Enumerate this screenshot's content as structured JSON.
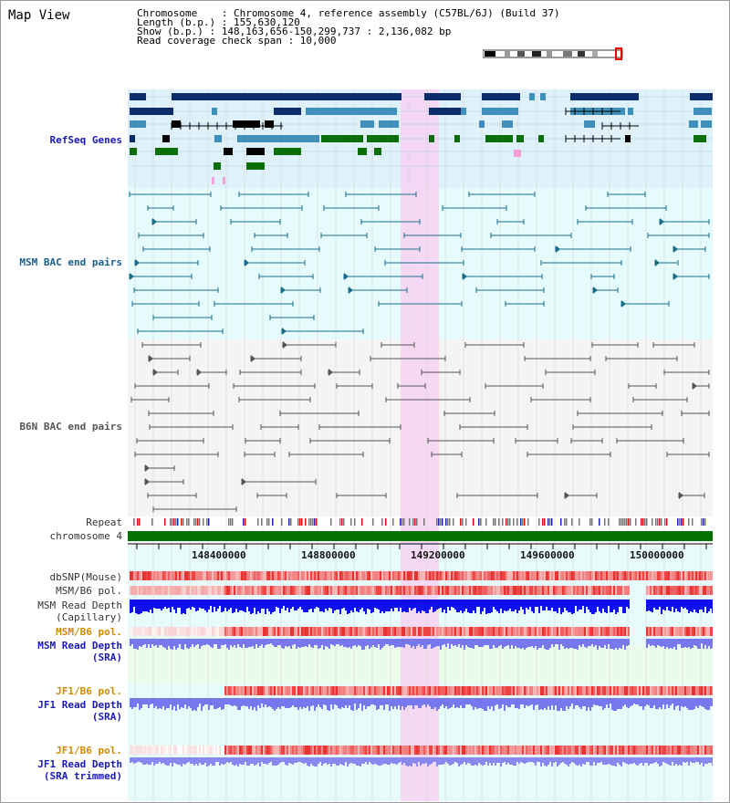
{
  "title": "Map View",
  "info": {
    "chromosome": "Chromosome    : Chromosome 4, reference assembly (C57BL/6J) (Build 37)",
    "length": "Length (b.p.) : 155,630,120",
    "show": "Show (b.p.) : 148,163,656-150,299,737 : 2,136,082 bp",
    "span": "Read coverage check span : 10,000"
  },
  "tracks": {
    "refseq": "RefSeq Genes",
    "msm_bac": "MSM BAC end pairs",
    "b6n_bac": "B6N BAC end pairs",
    "repeat": "Repeat",
    "chromosome": "chromosome 4",
    "dbsnp": "dbSNP(Mouse)",
    "msm_b6_pol_1": "MSM/B6 pol.",
    "msm_read_depth_cap_1": "MSM Read Depth",
    "msm_read_depth_cap_2": "(Capillary)",
    "msm_b6_pol_2": "MSM/B6 pol.",
    "msm_read_depth_sra_1": "MSM Read Depth",
    "msm_read_depth_sra_2": "(SRA)",
    "jf1_b6_pol_1": "JF1/B6 pol.",
    "jf1_read_depth_sra_1": "JF1 Read Depth",
    "jf1_read_depth_sra_2": "(SRA)",
    "jf1_b6_pol_2": "JF1/B6 pol.",
    "jf1_read_depth_trim_1": "JF1 Read Depth",
    "jf1_read_depth_trim_2": "(SRA trimmed)"
  },
  "axis": {
    "ticks": [
      "148400000",
      "148800000",
      "149200000",
      "149600000",
      "150000000"
    ]
  },
  "colors": {
    "refseq_bg": "#dff2fb",
    "msm_bg": "#e6fbfb",
    "b6n_bg": "#f4f4f4",
    "highlight": "#f7d2f2",
    "chromosome_bar": "#067206",
    "navy": "#0c2c6a",
    "steel": "#3f8fba",
    "green": "#0b6e0b",
    "teal_line": "#1a6e8c",
    "gray_line": "#555555",
    "snp_red": "#ee4444",
    "depth_blue": "#1010ee",
    "depth_lightblue": "#7777ee"
  }
}
